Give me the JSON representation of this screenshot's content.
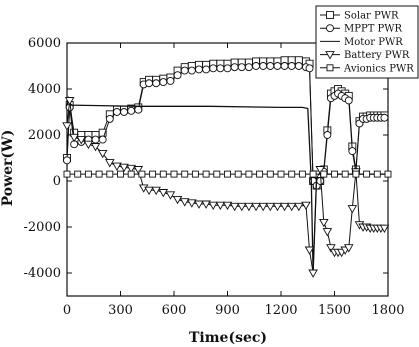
{
  "chart_data": {
    "type": "line",
    "xlabel": "Time(sec)",
    "ylabel": "Power(W)",
    "xlim": [
      0,
      1800
    ],
    "ylim": [
      -5000,
      6000
    ],
    "xticks": [
      "0",
      "300",
      "600",
      "900",
      "1200",
      "1500",
      "1800"
    ],
    "yticks": [
      "-4000",
      "-2000",
      "0",
      "2000",
      "4000",
      "6000"
    ],
    "grid": false,
    "legend_position": "top-right",
    "series": [
      {
        "name": "Solar PWR",
        "marker": "square",
        "x": [
          0,
          15,
          40,
          80,
          120,
          160,
          200,
          240,
          280,
          320,
          360,
          400,
          430,
          460,
          500,
          540,
          580,
          620,
          660,
          700,
          740,
          780,
          820,
          860,
          900,
          940,
          980,
          1020,
          1060,
          1100,
          1140,
          1180,
          1220,
          1260,
          1300,
          1340,
          1360,
          1380,
          1400,
          1420,
          1440,
          1460,
          1480,
          1500,
          1520,
          1540,
          1560,
          1580,
          1600,
          1620,
          1640,
          1660,
          1680,
          1700,
          1720,
          1740,
          1760,
          1780
        ],
        "y": [
          1000,
          3300,
          2100,
          2000,
          2000,
          2000,
          2100,
          2900,
          3100,
          3100,
          3150,
          3200,
          4300,
          4400,
          4400,
          4450,
          4500,
          4800,
          4950,
          5000,
          5050,
          5050,
          5100,
          5100,
          5100,
          5150,
          5150,
          5150,
          5200,
          5200,
          5200,
          5200,
          5250,
          5250,
          5250,
          5200,
          5100,
          0,
          -200,
          0,
          500,
          2200,
          3800,
          3900,
          4000,
          3900,
          3800,
          3700,
          1500,
          500,
          2600,
          2800,
          2800,
          2850,
          2850,
          2850,
          2850,
          2850
        ]
      },
      {
        "name": "MPPT PWR",
        "marker": "circle",
        "x": [
          0,
          15,
          40,
          80,
          120,
          160,
          200,
          240,
          280,
          320,
          360,
          400,
          430,
          460,
          500,
          540,
          580,
          620,
          660,
          700,
          740,
          780,
          820,
          860,
          900,
          940,
          980,
          1020,
          1060,
          1100,
          1140,
          1180,
          1220,
          1260,
          1300,
          1340,
          1360,
          1380,
          1400,
          1420,
          1440,
          1460,
          1480,
          1500,
          1520,
          1540,
          1560,
          1580,
          1600,
          1620,
          1640,
          1660,
          1680,
          1700,
          1720,
          1740,
          1760,
          1780
        ],
        "y": [
          900,
          3200,
          1600,
          1700,
          1800,
          1800,
          1800,
          2700,
          3000,
          3000,
          3050,
          3100,
          4200,
          4250,
          4250,
          4300,
          4350,
          4600,
          4800,
          4800,
          4850,
          4850,
          4900,
          4900,
          4900,
          4950,
          4950,
          4950,
          5000,
          5000,
          5000,
          5000,
          5000,
          5000,
          5000,
          4950,
          4900,
          0,
          -200,
          0,
          400,
          2000,
          3600,
          3700,
          3800,
          3700,
          3600,
          3500,
          1300,
          400,
          2500,
          2700,
          2700,
          2750,
          2750,
          2750,
          2750,
          2750
        ]
      },
      {
        "name": "Motor PWR",
        "marker": "none",
        "x": [
          0,
          10,
          20,
          400,
          800,
          1200,
          1320,
          1350,
          1370,
          1380,
          1400,
          1800
        ],
        "y": [
          3300,
          3600,
          3300,
          3250,
          3250,
          3200,
          3200,
          3150,
          0,
          -4000,
          300,
          300
        ]
      },
      {
        "name": "Battery PWR",
        "marker": "triangle-down",
        "x": [
          0,
          15,
          40,
          80,
          120,
          160,
          200,
          240,
          280,
          320,
          360,
          400,
          430,
          460,
          500,
          540,
          580,
          620,
          660,
          700,
          740,
          780,
          820,
          860,
          900,
          940,
          980,
          1020,
          1060,
          1100,
          1140,
          1180,
          1220,
          1260,
          1300,
          1340,
          1360,
          1380,
          1400,
          1420,
          1440,
          1460,
          1480,
          1500,
          1520,
          1540,
          1560,
          1580,
          1600,
          1620,
          1640,
          1660,
          1680,
          1700,
          1720,
          1740,
          1760,
          1780
        ],
        "y": [
          2400,
          3500,
          1900,
          1800,
          1600,
          1500,
          1200,
          800,
          650,
          600,
          550,
          500,
          -300,
          -400,
          -400,
          -500,
          -600,
          -800,
          -900,
          -950,
          -1000,
          -1000,
          -1050,
          -1050,
          -1050,
          -1100,
          -1100,
          -1100,
          -1100,
          -1100,
          -1100,
          -1100,
          -1100,
          -1100,
          -1100,
          -1050,
          -3000,
          -4000,
          300,
          500,
          -1800,
          -2200,
          -2900,
          -3100,
          -3100,
          -3100,
          -3000,
          -2900,
          -1200,
          400,
          -1900,
          -2000,
          -2000,
          -2050,
          -2050,
          -2050,
          -2050,
          -2050
        ]
      },
      {
        "name": "Avionics PWR",
        "marker": "square-small",
        "x": [
          0,
          60,
          120,
          180,
          240,
          300,
          360,
          420,
          480,
          540,
          600,
          660,
          720,
          780,
          840,
          900,
          960,
          1020,
          1080,
          1140,
          1200,
          1260,
          1320,
          1380,
          1440,
          1500,
          1560,
          1620,
          1680,
          1740,
          1800
        ],
        "y": [
          300,
          300,
          300,
          300,
          300,
          300,
          300,
          300,
          300,
          300,
          300,
          300,
          300,
          300,
          300,
          300,
          300,
          300,
          300,
          300,
          300,
          300,
          300,
          300,
          300,
          300,
          300,
          300,
          300,
          300,
          300
        ]
      }
    ]
  }
}
